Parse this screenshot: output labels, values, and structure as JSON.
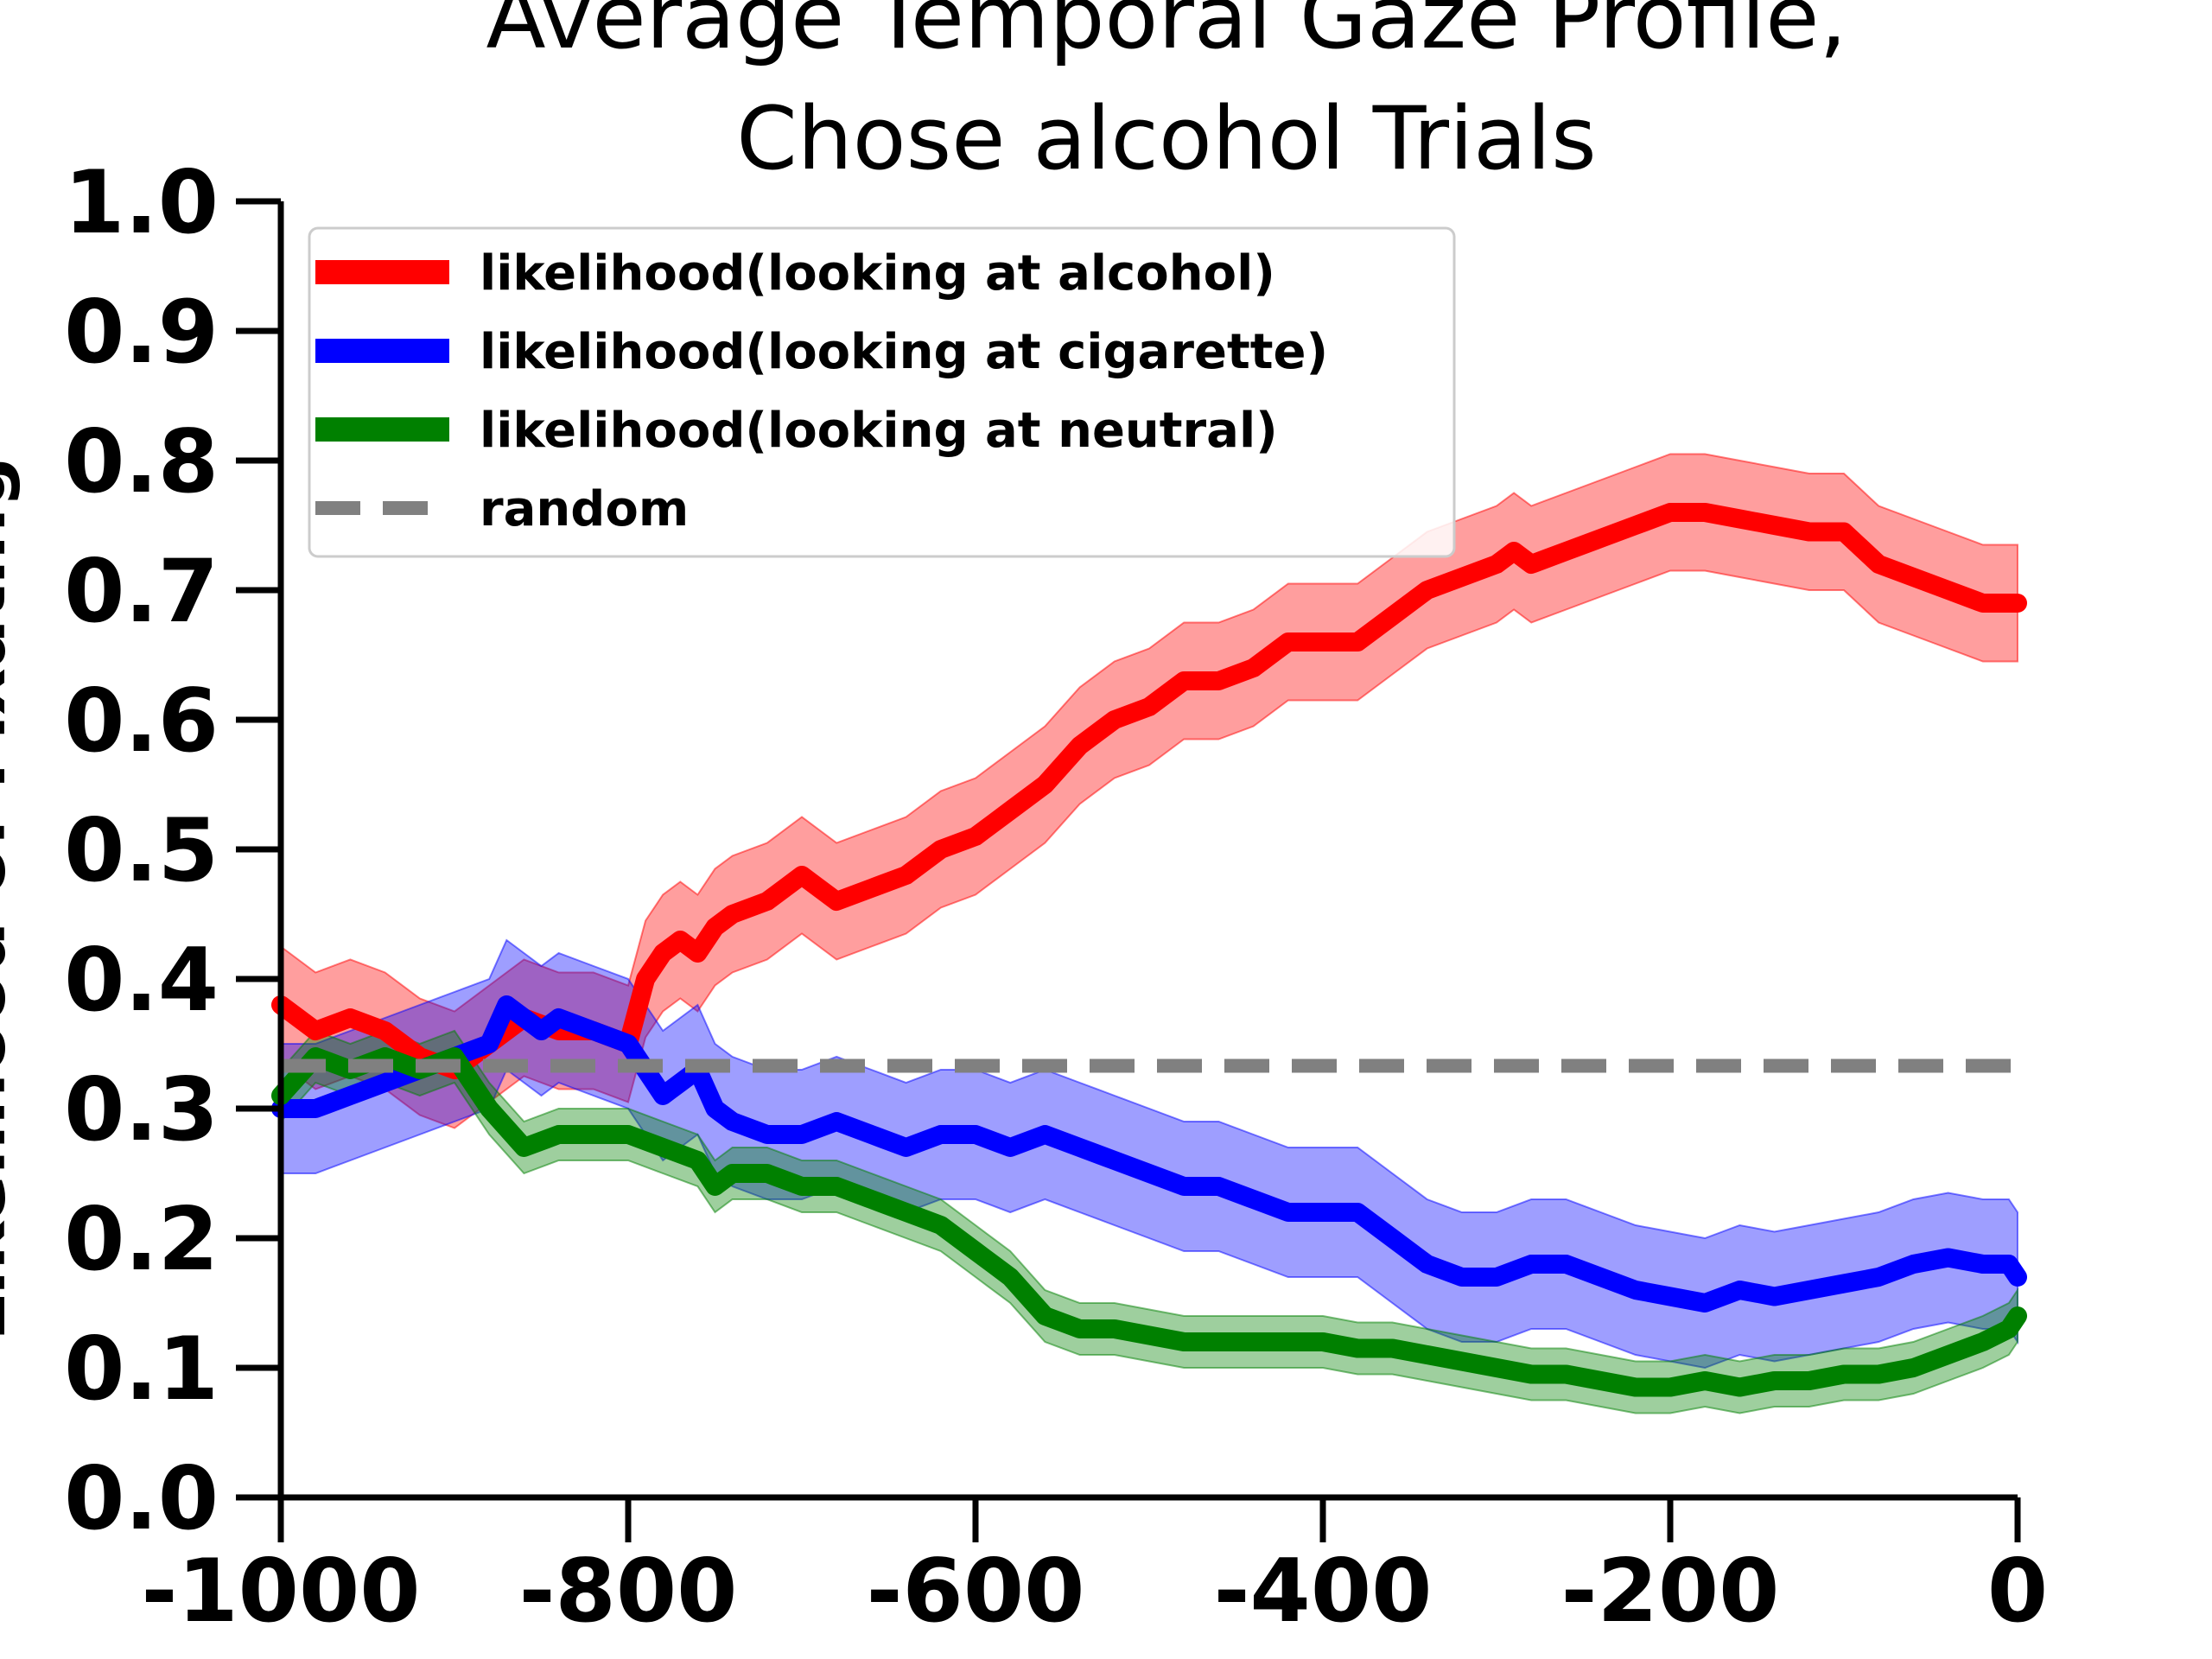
{
  "chart_data": {
    "type": "line",
    "title_lines": [
      "Average Temporal Gaze Profile,",
      "Chose alcohol Trials"
    ],
    "xlabel": "",
    "ylabel": "Likelihood of Fixating",
    "xlim": [
      -1000,
      0
    ],
    "ylim": [
      0,
      1
    ],
    "xticks": [
      -1000,
      -800,
      -600,
      -400,
      -200,
      0
    ],
    "xtick_labels": [
      "-1000",
      "-800",
      "-600",
      "-400",
      "-200",
      "0"
    ],
    "yticks": [
      0.0,
      0.1,
      0.2,
      0.3,
      0.4,
      0.5,
      0.6,
      0.7,
      0.8,
      0.9,
      1.0
    ],
    "ytick_labels": [
      "0.0",
      "0.1",
      "0.2",
      "0.3",
      "0.4",
      "0.5",
      "0.6",
      "0.7",
      "0.8",
      "0.9",
      "1.0"
    ],
    "grid": false,
    "legend_position": "upper-left",
    "series": [
      {
        "name": "likelihood(looking at alcohol)",
        "color": "#ff0000",
        "x": [
          -1000,
          -980,
          -960,
          -940,
          -920,
          -900,
          -880,
          -860,
          -840,
          -820,
          -800,
          -790,
          -780,
          -770,
          -760,
          -750,
          -740,
          -720,
          -700,
          -680,
          -660,
          -640,
          -620,
          -600,
          -580,
          -560,
          -540,
          -520,
          -500,
          -480,
          -460,
          -440,
          -420,
          -400,
          -380,
          -360,
          -340,
          -320,
          -300,
          -290,
          -280,
          -260,
          -240,
          -220,
          -200,
          -180,
          -160,
          -140,
          -120,
          -100,
          -80,
          -60,
          -40,
          -20,
          -5,
          0
        ],
        "values": [
          0.38,
          0.36,
          0.37,
          0.36,
          0.34,
          0.33,
          0.35,
          0.37,
          0.36,
          0.36,
          0.35,
          0.4,
          0.42,
          0.43,
          0.42,
          0.44,
          0.45,
          0.46,
          0.48,
          0.46,
          0.47,
          0.48,
          0.5,
          0.51,
          0.53,
          0.55,
          0.58,
          0.6,
          0.61,
          0.63,
          0.63,
          0.64,
          0.66,
          0.66,
          0.66,
          0.68,
          0.7,
          0.71,
          0.72,
          0.73,
          0.72,
          0.73,
          0.74,
          0.75,
          0.76,
          0.76,
          0.755,
          0.75,
          0.745,
          0.745,
          0.72,
          0.71,
          0.7,
          0.69,
          0.69,
          0.69
        ],
        "band_halfwidth": 0.045
      },
      {
        "name": "likelihood(looking at cigarette)",
        "color": "#0000ff",
        "x": [
          -1000,
          -980,
          -960,
          -940,
          -920,
          -900,
          -880,
          -870,
          -860,
          -850,
          -840,
          -820,
          -800,
          -790,
          -780,
          -770,
          -760,
          -750,
          -740,
          -720,
          -700,
          -680,
          -660,
          -640,
          -620,
          -600,
          -580,
          -560,
          -540,
          -520,
          -500,
          -480,
          -460,
          -440,
          -420,
          -400,
          -380,
          -360,
          -340,
          -320,
          -300,
          -280,
          -260,
          -240,
          -220,
          -200,
          -180,
          -160,
          -140,
          -120,
          -100,
          -80,
          -60,
          -40,
          -20,
          -5,
          0
        ],
        "values": [
          0.3,
          0.3,
          0.31,
          0.32,
          0.33,
          0.34,
          0.35,
          0.38,
          0.37,
          0.36,
          0.37,
          0.36,
          0.35,
          0.33,
          0.31,
          0.32,
          0.33,
          0.3,
          0.29,
          0.28,
          0.28,
          0.29,
          0.28,
          0.27,
          0.28,
          0.28,
          0.27,
          0.28,
          0.27,
          0.26,
          0.25,
          0.24,
          0.24,
          0.23,
          0.22,
          0.22,
          0.22,
          0.2,
          0.18,
          0.17,
          0.17,
          0.18,
          0.18,
          0.17,
          0.16,
          0.155,
          0.15,
          0.16,
          0.155,
          0.16,
          0.165,
          0.17,
          0.18,
          0.185,
          0.18,
          0.18,
          0.17
        ],
        "band_halfwidth": 0.05
      },
      {
        "name": "likelihood(looking at neutral)",
        "color": "#008000",
        "x": [
          -1000,
          -980,
          -960,
          -940,
          -920,
          -900,
          -880,
          -860,
          -840,
          -820,
          -800,
          -780,
          -760,
          -750,
          -740,
          -720,
          -700,
          -680,
          -660,
          -640,
          -620,
          -600,
          -580,
          -560,
          -540,
          -520,
          -500,
          -480,
          -460,
          -440,
          -420,
          -400,
          -380,
          -360,
          -340,
          -320,
          -300,
          -280,
          -260,
          -240,
          -220,
          -200,
          -180,
          -160,
          -140,
          -120,
          -100,
          -80,
          -60,
          -40,
          -20,
          -5,
          0
        ],
        "values": [
          0.31,
          0.34,
          0.33,
          0.34,
          0.33,
          0.34,
          0.3,
          0.27,
          0.28,
          0.28,
          0.28,
          0.27,
          0.26,
          0.24,
          0.25,
          0.25,
          0.24,
          0.24,
          0.23,
          0.22,
          0.21,
          0.19,
          0.17,
          0.14,
          0.13,
          0.13,
          0.125,
          0.12,
          0.12,
          0.12,
          0.12,
          0.12,
          0.115,
          0.115,
          0.11,
          0.105,
          0.1,
          0.095,
          0.095,
          0.09,
          0.085,
          0.085,
          0.09,
          0.085,
          0.09,
          0.09,
          0.095,
          0.095,
          0.1,
          0.11,
          0.12,
          0.13,
          0.14
        ],
        "band_halfwidth": 0.02
      },
      {
        "name": "random",
        "color": "#808080",
        "dashed": true,
        "x": [
          -1000,
          0
        ],
        "values": [
          0.333,
          0.333
        ]
      }
    ]
  }
}
